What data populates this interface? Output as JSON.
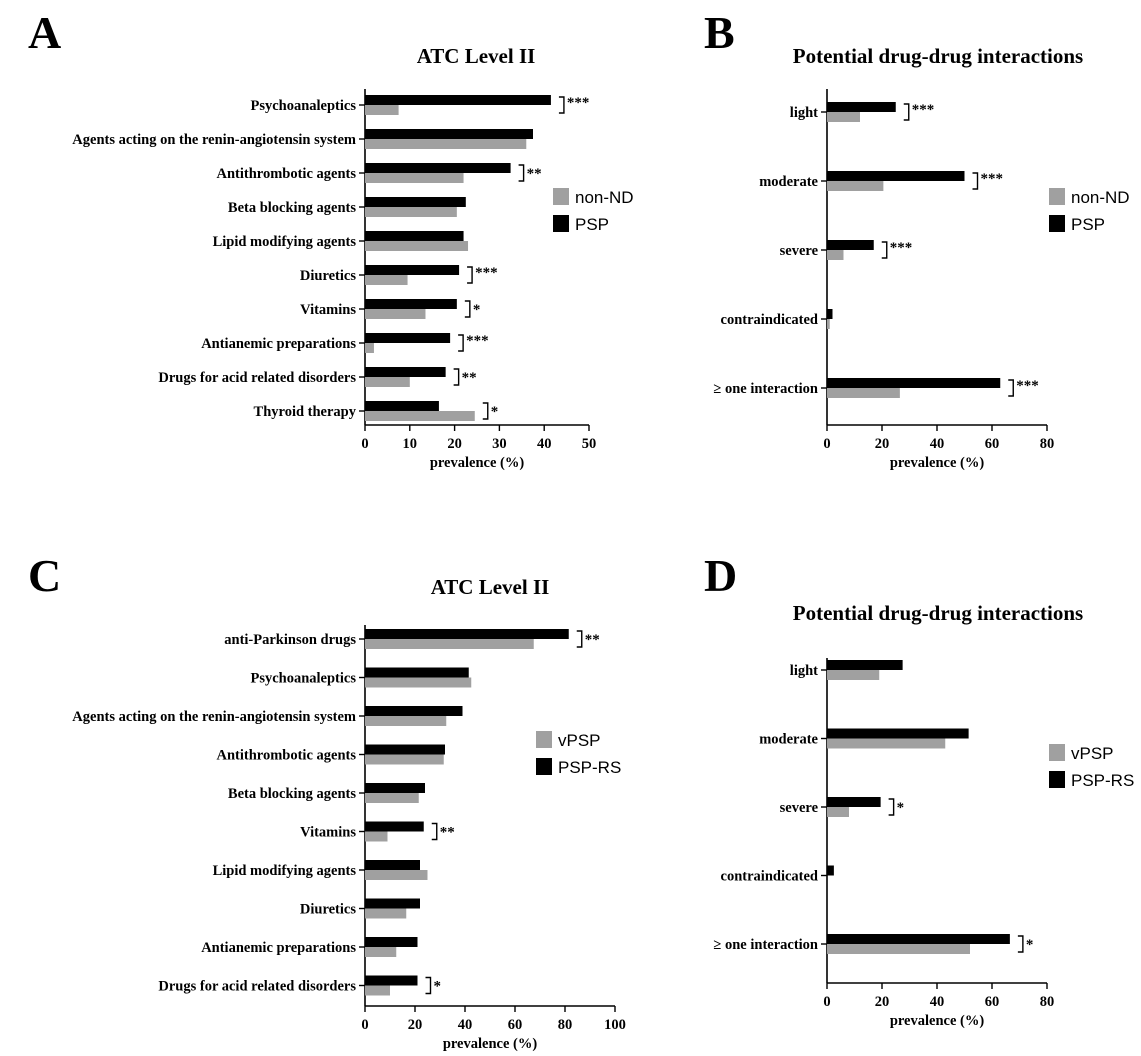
{
  "panels": {
    "a": "A",
    "b": "B",
    "c": "C",
    "d": "D"
  },
  "colors": {
    "series1": "#000000",
    "series2": "#a0a0a0"
  },
  "chart_data": [
    {
      "type": "bar",
      "orientation": "horizontal",
      "panel": "A",
      "title": "ATC Level II",
      "xlabel": "prevalence (%)",
      "xlim": [
        0,
        50
      ],
      "xticks": [
        0,
        10,
        20,
        30,
        40,
        50
      ],
      "categories": [
        "Psychoanaleptics",
        "Agents acting on the renin-angiotensin system",
        "Antithrombotic agents",
        "Beta blocking agents",
        "Lipid modifying agents",
        "Diuretics",
        "Vitamins",
        "Antianemic preparations",
        "Drugs for acid related disorders",
        "Thyroid therapy"
      ],
      "series": [
        {
          "name": "PSP",
          "color": "#000000",
          "values": [
            41.5,
            37.5,
            32.5,
            22.5,
            22,
            21,
            20.5,
            19,
            18,
            16.5
          ]
        },
        {
          "name": "non-ND",
          "color": "#a0a0a0",
          "values": [
            7.5,
            36,
            22,
            20.5,
            23,
            9.5,
            13.5,
            2,
            10,
            24.5
          ]
        }
      ],
      "significance": [
        "***",
        "",
        "**",
        "",
        "",
        "***",
        "*",
        "***",
        "**",
        "*"
      ],
      "legend": "right"
    },
    {
      "type": "bar",
      "orientation": "horizontal",
      "panel": "B",
      "title": "Potential drug-drug interactions",
      "xlabel": "prevalence (%)",
      "xlim": [
        0,
        80
      ],
      "xticks": [
        0,
        20,
        40,
        60,
        80
      ],
      "categories": [
        "light",
        "moderate",
        "severe",
        "contraindicated",
        "≥ one interaction"
      ],
      "series": [
        {
          "name": "PSP",
          "color": "#000000",
          "values": [
            25,
            50,
            17,
            2,
            63
          ]
        },
        {
          "name": "non-ND",
          "color": "#a0a0a0",
          "values": [
            12,
            20.5,
            6,
            1,
            26.5
          ]
        }
      ],
      "significance": [
        "***",
        "***",
        "***",
        "",
        "***"
      ],
      "legend": "right"
    },
    {
      "type": "bar",
      "orientation": "horizontal",
      "panel": "C",
      "title": "ATC Level II",
      "xlabel": "prevalence (%)",
      "xlim": [
        0,
        100
      ],
      "xticks": [
        0,
        20,
        40,
        60,
        80,
        100
      ],
      "categories": [
        "anti-Parkinson drugs",
        "Psychoanaleptics",
        "Agents acting on the renin-angiotensin system",
        "Antithrombotic agents",
        "Beta blocking agents",
        "Vitamins",
        "Lipid modifying agents",
        "Diuretics",
        "Antianemic preparations",
        "Drugs for acid related disorders"
      ],
      "series": [
        {
          "name": "PSP-RS",
          "color": "#000000",
          "values": [
            81.5,
            41.5,
            39,
            32,
            24,
            23.5,
            22,
            22,
            21,
            21
          ]
        },
        {
          "name": "vPSP",
          "color": "#a0a0a0",
          "values": [
            67.5,
            42.5,
            32.5,
            31.5,
            21.5,
            9,
            25,
            16.5,
            12.5,
            10
          ]
        }
      ],
      "significance": [
        "**",
        "",
        "",
        "",
        "",
        "**",
        "",
        "",
        "",
        "*"
      ],
      "legend": "right"
    },
    {
      "type": "bar",
      "orientation": "horizontal",
      "panel": "D",
      "title": "Potential drug-drug interactions",
      "xlabel": "prevalence (%)",
      "xlim": [
        0,
        80
      ],
      "xticks": [
        0,
        20,
        40,
        60,
        80
      ],
      "categories": [
        "light",
        "moderate",
        "severe",
        "contraindicated",
        "≥ one interaction"
      ],
      "series": [
        {
          "name": "PSP-RS",
          "color": "#000000",
          "values": [
            27.5,
            51.5,
            19.5,
            2.5,
            66.5
          ]
        },
        {
          "name": "vPSP",
          "color": "#a0a0a0",
          "values": [
            19,
            43,
            8,
            0,
            52
          ]
        }
      ],
      "significance": [
        "",
        "",
        "*",
        "",
        "*"
      ],
      "legend": "right"
    }
  ]
}
